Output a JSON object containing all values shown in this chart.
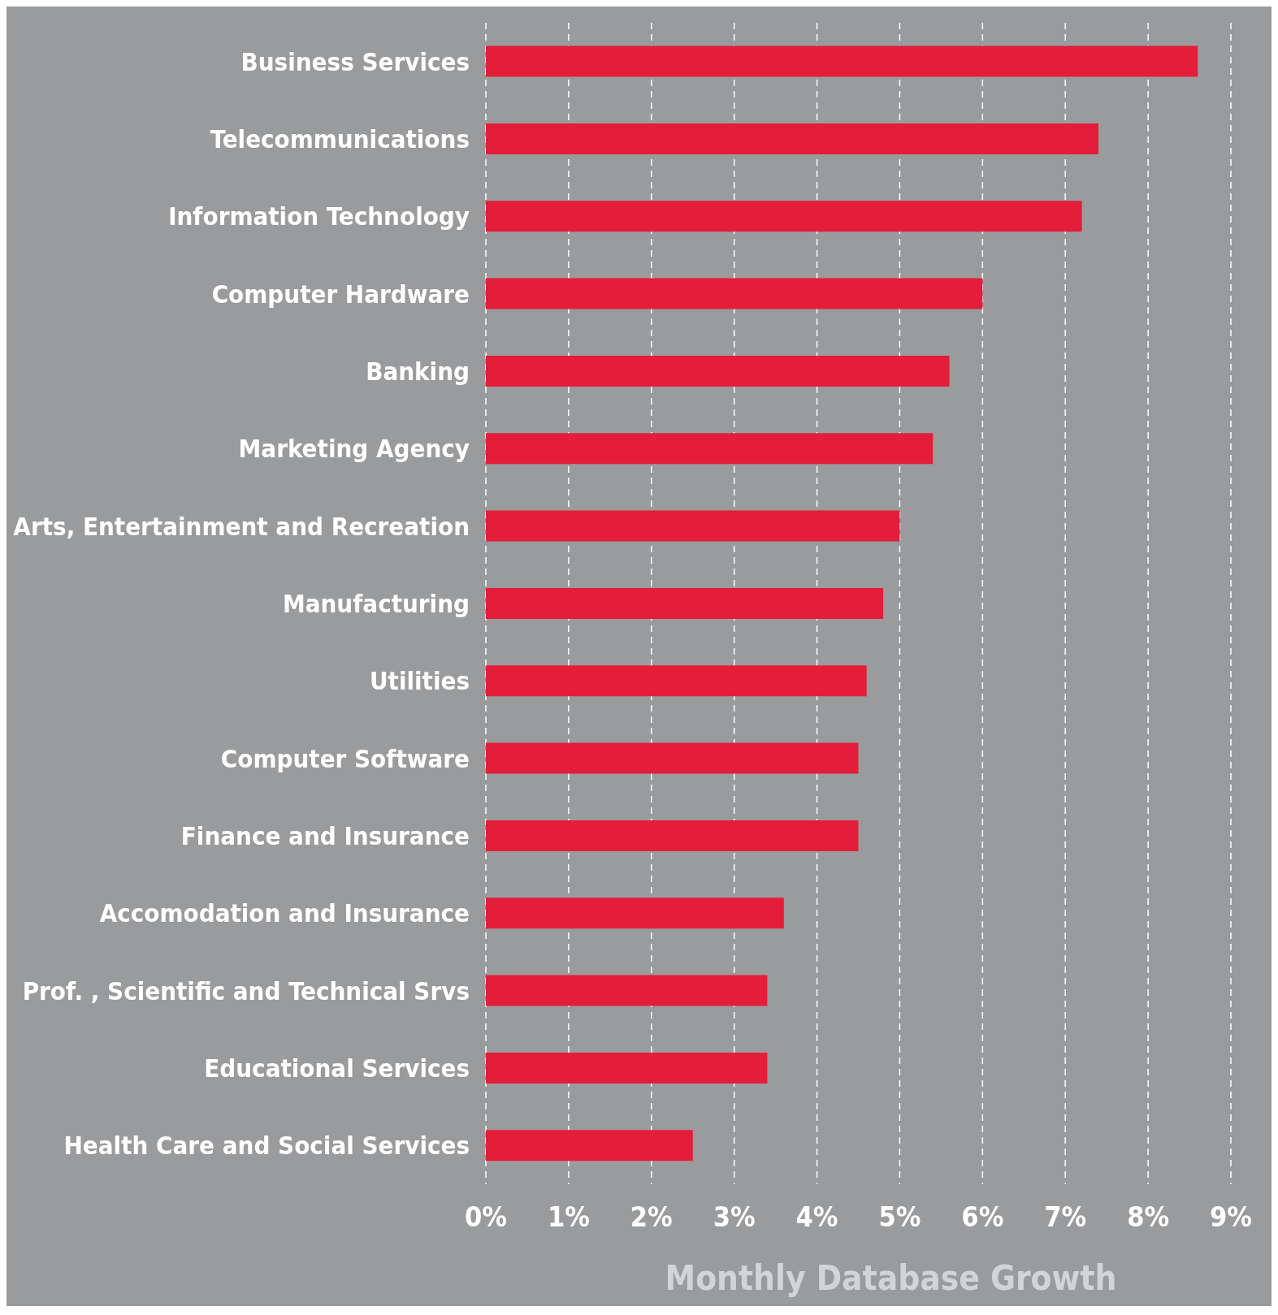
{
  "chart_data": {
    "type": "bar",
    "orientation": "horizontal",
    "xlabel": "Monthly Database Growth",
    "categories": [
      "Business Services",
      "Telecommunications",
      "Information Technology",
      "Computer Hardware",
      "Banking",
      "Marketing Agency",
      "Arts, Entertainment and Recreation",
      "Manufacturing",
      "Utilities",
      "Computer Software",
      "Finance and Insurance",
      "Accomodation and Insurance",
      "Prof. , Scientific and Technical Srvs",
      "Educational Services",
      "Health Care and Social Services"
    ],
    "values": [
      8.6,
      7.4,
      7.2,
      6.0,
      5.6,
      5.4,
      5.0,
      4.8,
      4.6,
      4.5,
      4.5,
      3.6,
      3.4,
      3.4,
      2.5
    ],
    "color": "#e31d3a",
    "xlim": [
      0,
      9
    ],
    "xticks": [
      {
        "value": 0,
        "label": "0%"
      },
      {
        "value": 1,
        "label": "1%"
      },
      {
        "value": 2,
        "label": "2%"
      },
      {
        "value": 3,
        "label": "3%"
      },
      {
        "value": 4,
        "label": "4%"
      },
      {
        "value": 5,
        "label": "5%"
      },
      {
        "value": 6,
        "label": "6%"
      },
      {
        "value": 7,
        "label": "7%"
      },
      {
        "value": 8,
        "label": "8%"
      },
      {
        "value": 9,
        "label": "9%"
      }
    ],
    "grid": "x"
  }
}
